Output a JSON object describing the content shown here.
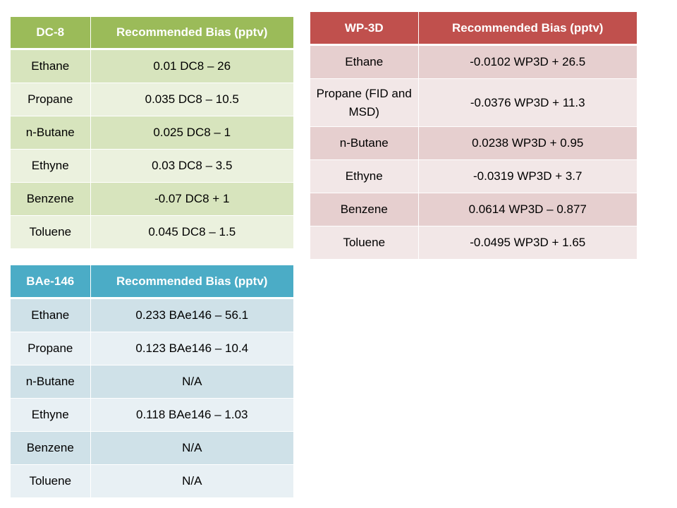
{
  "dc8": {
    "header": [
      "DC-8",
      "Recommended Bias (pptv)"
    ],
    "rows": [
      [
        "Ethane",
        "0.01 DC8 – 26"
      ],
      [
        "Propane",
        "0.035 DC8 – 10.5"
      ],
      [
        "n-Butane",
        "0.025 DC8 – 1"
      ],
      [
        "Ethyne",
        "0.03 DC8 – 3.5"
      ],
      [
        "Benzene",
        "-0.07 DC8 + 1"
      ],
      [
        "Toluene",
        "0.045 DC8 – 1.5"
      ]
    ],
    "colors": {
      "header": "#9bbb59",
      "row_dark": "#d7e4bd",
      "row_light": "#ebf1de"
    }
  },
  "wp3d": {
    "header": [
      "WP-3D",
      "Recommended Bias (pptv)"
    ],
    "rows": [
      [
        "Ethane",
        "-0.0102 WP3D + 26.5"
      ],
      [
        "Propane (FID and MSD)",
        "-0.0376 WP3D + 11.3"
      ],
      [
        "n-Butane",
        "0.0238 WP3D + 0.95"
      ],
      [
        "Ethyne",
        "-0.0319 WP3D + 3.7"
      ],
      [
        "Benzene",
        "0.0614 WP3D – 0.877"
      ],
      [
        "Toluene",
        "-0.0495 WP3D + 1.65"
      ]
    ],
    "colors": {
      "header": "#c0504d",
      "row_dark": "#e6cfcf",
      "row_light": "#f2e7e7"
    }
  },
  "bae146": {
    "header": [
      "BAe-146",
      "Recommended Bias (pptv)"
    ],
    "rows": [
      [
        "Ethane",
        "0.233 BAe146 – 56.1"
      ],
      [
        "Propane",
        "0.123 BAe146 – 10.4"
      ],
      [
        "n-Butane",
        "N/A"
      ],
      [
        "Ethyne",
        "0.118 BAe146 – 1.03"
      ],
      [
        "Benzene",
        "N/A"
      ],
      [
        "Toluene",
        "N/A"
      ]
    ],
    "colors": {
      "header": "#4bacc6",
      "row_dark": "#cfe1e8",
      "row_light": "#e8f0f4"
    }
  }
}
